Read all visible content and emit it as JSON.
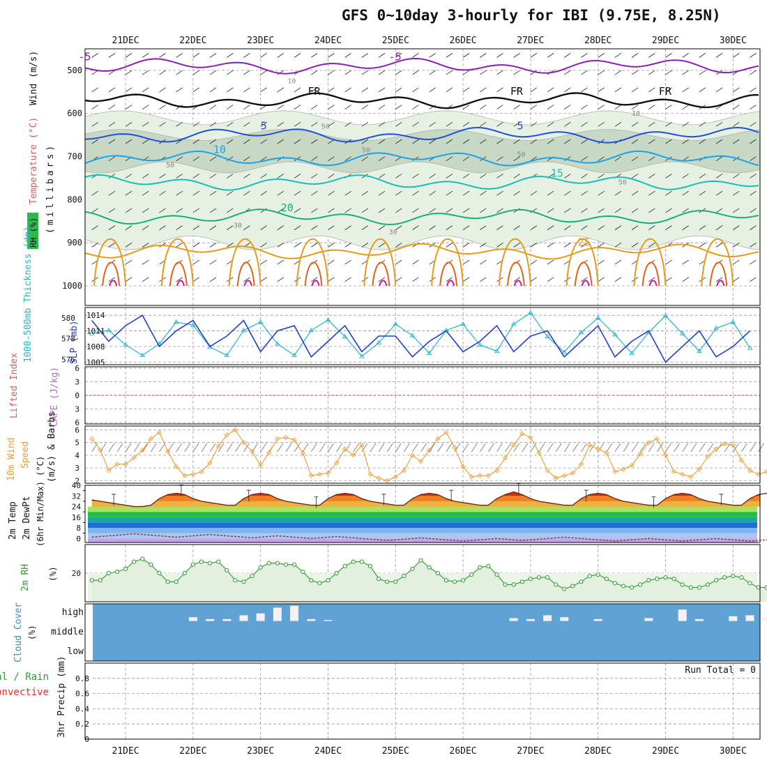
{
  "title": "GFS 0~10day 3-hourly for IBI (9.75E, 8.25N)",
  "colors": {
    "purple": "#8a1fb5",
    "black": "#111111",
    "blue": "#1f4fd8",
    "sky": "#1aa3e8",
    "teal": "#17bfb3",
    "green": "#13b07a",
    "orange": "#e69a1a",
    "darkorange": "#e0631a",
    "magenta": "#d0179b",
    "slp": "#1f3fc8",
    "thick": "#25b4c8",
    "wind": "#f09a30",
    "rh": "#2e9a2e",
    "cloud": "#5fa3d4"
  },
  "chart_data": [
    {
      "type": "line",
      "name_panel": "upper-air",
      "left_labels": [
        "RH (%)",
        "Temperature (°C)",
        "Wind (m/s)",
        "(millibars)"
      ],
      "x_ticks": [
        "21DEC",
        "22DEC",
        "23DEC",
        "24DEC",
        "25DEC",
        "26DEC",
        "27DEC",
        "28DEC",
        "29DEC",
        "30DEC"
      ],
      "y_ticks": [
        500,
        600,
        700,
        800,
        900,
        1000
      ],
      "ylim": [
        450,
        1000
      ],
      "isotherms": [
        {
          "label": "-5",
          "level_mb": 490,
          "color": "purple",
          "label_at": [
            {
              "day": 20.3,
              "text": "-5"
            },
            {
              "day": 24.9,
              "text": "-5"
            }
          ]
        },
        {
          "label": "FR",
          "level_mb": 570,
          "color": "black",
          "label_at": [
            {
              "day": 23.7,
              "text": "FR"
            },
            {
              "day": 26.7,
              "text": "FR"
            },
            {
              "day": 28.9,
              "text": "FR"
            }
          ]
        },
        {
          "label": "5",
          "level_mb": 650,
          "color": "blue",
          "label_at": [
            {
              "day": 23.0,
              "text": "5"
            },
            {
              "day": 26.8,
              "text": "5"
            }
          ]
        },
        {
          "label": "10",
          "level_mb": 705,
          "color": "sky",
          "label_at": [
            {
              "day": 22.3,
              "text": "10"
            }
          ]
        },
        {
          "label": "15",
          "level_mb": 760,
          "color": "teal",
          "label_at": [
            {
              "day": 27.3,
              "text": "15"
            }
          ]
        },
        {
          "label": "20",
          "level_mb": 840,
          "color": "green",
          "label_at": [
            {
              "day": 23.3,
              "text": "20"
            }
          ]
        },
        {
          "label": "25",
          "level_mb": 920,
          "color": "orange",
          "label_at": [
            {
              "day": 27.7,
              "text": "25"
            }
          ]
        }
      ],
      "rh_contour_labels": [
        {
          "day": 23.4,
          "level_mb": 530,
          "text": "10"
        },
        {
          "day": 28.5,
          "level_mb": 605,
          "text": "10"
        },
        {
          "day": 23.9,
          "level_mb": 635,
          "text": "50"
        },
        {
          "day": 24.5,
          "level_mb": 690,
          "text": "50"
        },
        {
          "day": 21.6,
          "level_mb": 725,
          "text": "50"
        },
        {
          "day": 26.8,
          "level_mb": 700,
          "text": "50"
        },
        {
          "day": 28.3,
          "level_mb": 765,
          "text": "50"
        },
        {
          "day": 22.6,
          "level_mb": 865,
          "text": "30"
        },
        {
          "day": 24.9,
          "level_mb": 880,
          "text": "30"
        }
      ]
    },
    {
      "type": "line",
      "name_panel": "slp-thickness",
      "left_label_1": "1000-500mb Thickness (dm)",
      "left_label_2": "SLP (mb)",
      "thickness_ticks": [
        576,
        578,
        580
      ],
      "slp_ticks": [
        1005,
        1008,
        1011,
        1014
      ],
      "series": [
        {
          "name": "SLP (mb)",
          "unit": "mb",
          "ylim": [
            1004.5,
            1015.5
          ],
          "color": "slp",
          "x_day_start": 20.5,
          "step_hours": 6,
          "values": [
            1013,
            1009,
            1012,
            1014,
            1008,
            1011,
            1013,
            1008,
            1010,
            1013,
            1007,
            1011,
            1012,
            1006,
            1009,
            1012,
            1007,
            1010,
            1010,
            1006,
            1009,
            1011,
            1007,
            1009,
            1012,
            1007,
            1010,
            1011,
            1006,
            1009,
            1012,
            1006,
            1009,
            1011,
            1005,
            1008,
            1011,
            1006,
            1008,
            1011
          ]
        },
        {
          "name": "1000-500mb Thickness (dm)",
          "unit": "dm",
          "ylim": [
            575.5,
            581
          ],
          "color": "thick",
          "x_day_start": 20.5,
          "step_hours": 6,
          "values": [
            578.5,
            578.8,
            577.4,
            576.4,
            577.5,
            579.6,
            579.3,
            577.2,
            576.4,
            578.8,
            579.6,
            577.5,
            576.4,
            578.8,
            579.8,
            578.2,
            576.3,
            577.6,
            579.4,
            578.3,
            576.6,
            578.8,
            579.4,
            577.4,
            576.8,
            579.4,
            580.5,
            578.2,
            576.7,
            578.6,
            580.0,
            578.4,
            576.6,
            578.6,
            580.2,
            578.5,
            576.8,
            579.0,
            579.6,
            577.1
          ]
        }
      ]
    },
    {
      "type": "line",
      "name_panel": "lifted-index-cape",
      "left_label_1": "Lifted Index",
      "left_label_2": "CAPE (J/kg)",
      "y_ticks": [
        -6,
        -3,
        0,
        3,
        6
      ],
      "y_tick_labels": [
        "6",
        "3",
        "0",
        "3",
        "6"
      ],
      "ylim": [
        -6,
        6
      ],
      "zero_line": 0
    },
    {
      "type": "line",
      "name_panel": "wind-10m",
      "left_label_1": "10m Wind",
      "left_label_2": "Speed",
      "left_label_3": "(m/s) & Barbs",
      "y_ticks": [
        2,
        3,
        4,
        5,
        6
      ],
      "ylim": [
        1.8,
        6.3
      ],
      "x_day_start": 20.5,
      "step_hours": 3,
      "values": [
        5.3,
        4.4,
        2.8,
        3.3,
        3.3,
        3.8,
        4.4,
        5.3,
        5.8,
        4.3,
        3.1,
        2.4,
        2.5,
        2.7,
        3.4,
        4.7,
        5.6,
        6.0,
        5.0,
        4.3,
        3.2,
        4.2,
        5.3,
        5.4,
        5.2,
        4.2,
        2.4,
        2.5,
        2.6,
        3.4,
        4.5,
        4.0,
        4.8,
        2.5,
        2.2,
        2.0,
        2.3,
        2.8,
        4.0,
        3.5,
        4.4,
        5.3,
        5.8,
        4.6,
        3.1,
        2.3,
        2.4,
        2.4,
        2.8,
        3.8,
        4.8,
        5.7,
        5.4,
        4.2,
        2.8,
        2.2,
        2.4,
        2.6,
        3.3,
        4.8,
        4.5,
        4.2,
        2.7,
        2.9,
        3.2,
        4.1,
        5.0,
        5.3,
        4.0,
        2.7,
        2.5,
        2.3,
        2.9,
        3.9,
        4.5,
        4.9,
        4.8,
        3.6,
        2.8,
        2.5,
        2.7,
        2.8,
        4.2,
        4.8,
        5.2,
        4.9,
        4.5,
        3.4,
        2.5,
        2.6,
        3.0,
        3.9,
        4.6,
        4.9,
        4.4,
        3.8,
        2.9,
        2.7,
        2.8,
        3.2,
        4.1
      ]
    },
    {
      "type": "area",
      "name_panel": "temp-2m",
      "left_label_1": "2m Temp",
      "left_label_2": "2m DewPt",
      "left_label_3": "(6hr Min/Max) (°C)",
      "y_ticks": [
        0,
        8,
        16,
        24,
        32,
        40
      ],
      "y_tick_labels": [
        "0",
        "8",
        "16",
        "24",
        "32",
        "40"
      ],
      "y_minor_ticks": [
        4,
        12,
        20,
        28,
        36
      ],
      "ylim": [
        -3,
        40
      ],
      "x_day_start": 20.5,
      "step_hours": 3,
      "temperature": [
        29,
        28,
        27,
        26,
        25,
        24,
        24,
        25,
        30,
        33,
        34,
        33,
        30,
        28,
        27,
        26,
        25,
        25,
        30,
        33,
        34,
        33,
        30,
        28,
        27,
        26,
        25,
        25,
        30,
        33,
        34,
        33,
        30,
        28,
        27,
        26,
        25,
        25,
        30,
        33,
        34,
        33,
        30,
        28,
        27,
        26,
        25,
        25,
        30,
        33,
        35,
        33,
        30,
        28,
        27,
        26,
        25,
        25,
        30,
        33,
        34,
        33,
        30,
        28,
        27,
        26,
        25,
        25,
        30,
        33,
        34,
        33,
        30,
        28,
        27,
        26,
        25,
        25,
        30,
        33,
        34,
        33,
        30,
        28,
        27,
        26,
        25,
        25,
        30,
        33,
        34,
        33,
        30,
        28,
        26,
        25,
        24
      ],
      "dewpoint": [
        1,
        1.5,
        2,
        2.5,
        3,
        3.5,
        3,
        2.5,
        2,
        1.5,
        1,
        1.5,
        2,
        2.5,
        3,
        2.5,
        2,
        1.5,
        1,
        0.5,
        1,
        1.5,
        2,
        1.5,
        1,
        0.5,
        0,
        0.5,
        1,
        1.5,
        1,
        0.5,
        0,
        -0.5,
        -1,
        -1.5,
        -1,
        -0.5,
        0,
        0.5,
        0,
        -0.5,
        -1,
        -1.5,
        -2,
        -1.5,
        -1,
        -0.5,
        0,
        -0.5,
        -1,
        -1.5,
        -1,
        -0.5,
        0,
        0.5,
        1,
        0.5,
        0,
        -0.5,
        -1,
        -1.5,
        -2,
        -1.5,
        -1,
        -0.5,
        0,
        -0.5,
        -1,
        -1.5,
        -2,
        -1.5,
        -1,
        -0.5,
        0,
        -0.5,
        -1,
        -1.5,
        -2,
        -1.5,
        -1,
        -0.5,
        0,
        -0.5,
        -1,
        -1.5,
        -1,
        -0.5,
        0,
        0.5,
        0,
        -0.5,
        -1
      ]
    },
    {
      "type": "line",
      "name_panel": "rh-2m",
      "left_label_1": "2m RH",
      "left_label_2": "(%)",
      "y_ticks": [
        20
      ],
      "ylim": [
        0,
        40
      ],
      "x_day_start": 20.5,
      "step_hours": 3,
      "values": [
        15,
        15,
        20,
        21,
        23,
        28,
        30,
        26,
        20,
        14,
        14,
        20,
        26,
        28,
        27,
        28,
        22,
        15,
        14,
        18,
        24,
        27,
        27,
        26,
        26,
        21,
        15,
        13,
        15,
        20,
        25,
        28,
        28,
        25,
        16,
        14,
        14,
        18,
        23,
        29,
        24,
        20,
        15,
        14,
        15,
        19,
        24,
        25,
        19,
        12,
        12,
        14,
        16,
        17,
        17,
        12,
        9,
        11,
        14,
        18,
        19,
        16,
        13,
        11,
        10,
        12,
        15,
        16,
        17,
        16,
        12,
        10,
        10,
        12,
        15,
        17,
        18,
        17,
        13,
        10,
        10,
        12,
        14,
        15,
        15,
        15,
        12,
        9,
        8,
        10,
        14,
        17,
        19,
        19
      ]
    },
    {
      "type": "bar",
      "name_panel": "cloud-cover",
      "left_label_1": "Cloud Cover",
      "left_label_2": "(%)",
      "levels": [
        "high",
        "middle",
        "low"
      ],
      "x_day_start": 20.5,
      "step_hours": 6,
      "high_cloud_pct": [
        0,
        0,
        0,
        0,
        0,
        0,
        20,
        10,
        10,
        30,
        40,
        70,
        80,
        10,
        5,
        0,
        0,
        0,
        0,
        0,
        0,
        0,
        0,
        0,
        0,
        15,
        10,
        30,
        20,
        0,
        10,
        0,
        0,
        15,
        0,
        60,
        10,
        0,
        25,
        30,
        20,
        30,
        0,
        60,
        0,
        0,
        0,
        0,
        0,
        0,
        0,
        10,
        0,
        0,
        20,
        25,
        0,
        20,
        0,
        0,
        0,
        0,
        0,
        0,
        0,
        0,
        0,
        0,
        0,
        0,
        0,
        0,
        0,
        0,
        10,
        0,
        15,
        0,
        0,
        0,
        0,
        0,
        0,
        0,
        0,
        0,
        15,
        0,
        0,
        0,
        0,
        0,
        0,
        0,
        0,
        25
      ]
    },
    {
      "type": "bar",
      "name_panel": "precip-3hr",
      "left_label_1": "Total / Rain",
      "left_label_2": "Convective",
      "left_label_3": "3hr Precip (mm)",
      "y_ticks": [
        0,
        0.2,
        0.4,
        0.6,
        0.8
      ],
      "y_tick_labels": [
        "0",
        "0.2",
        "0.4",
        "0.6",
        "0.8"
      ],
      "ylim": [
        0,
        1.0
      ],
      "run_total_label": "Run Total = 0",
      "values": []
    }
  ]
}
